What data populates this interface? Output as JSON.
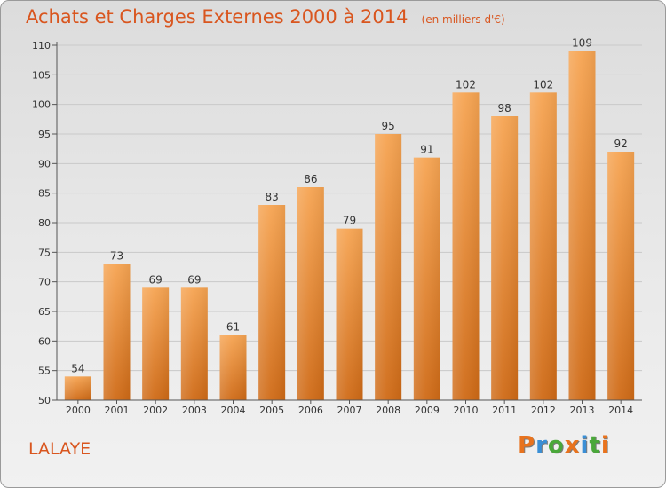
{
  "header": {
    "title": "Achats et Charges Externes 2000 à 2014",
    "subtitle": "(en milliers d'€)"
  },
  "footer": {
    "commune": "LALAYE",
    "logo_text": "Proxiti",
    "logo_colors": [
      "#e8731e",
      "#3a8fd6",
      "#4aa83a",
      "#e8731e",
      "#3a8fd6",
      "#4aa83a",
      "#e8731e"
    ]
  },
  "colors": {
    "accent": "#d9561f",
    "bar_top": "#f6a452",
    "bar_bottom": "#cf6a16",
    "grid": "#c9c9c9",
    "axis": "#555555"
  },
  "chart_data": {
    "type": "bar",
    "categories": [
      "2000",
      "2001",
      "2002",
      "2003",
      "2004",
      "2005",
      "2006",
      "2007",
      "2008",
      "2009",
      "2010",
      "2011",
      "2012",
      "2013",
      "2014"
    ],
    "values": [
      54,
      73,
      69,
      69,
      61,
      83,
      86,
      79,
      95,
      91,
      102,
      98,
      102,
      109,
      92
    ],
    "ylim": [
      50,
      110
    ],
    "yticks": [
      50,
      55,
      60,
      65,
      70,
      75,
      80,
      85,
      90,
      95,
      100,
      105,
      110
    ],
    "grid": true
  }
}
